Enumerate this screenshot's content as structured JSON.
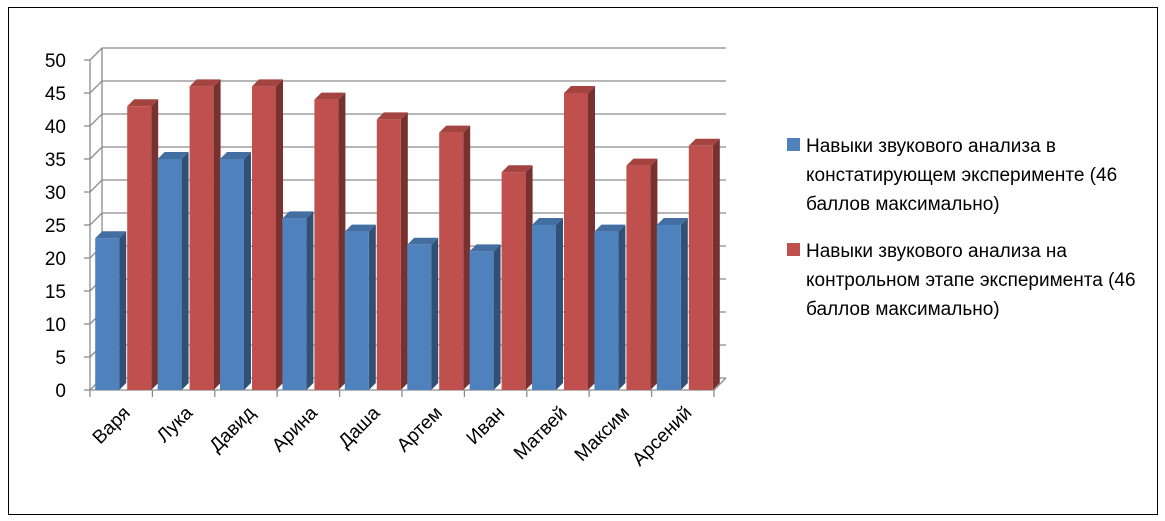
{
  "chart_data": {
    "type": "bar",
    "categories": [
      "Варя",
      "Лука",
      "Давид",
      "Арина",
      "Даша",
      "Артем",
      "Иван",
      "Матвей",
      "Максим",
      "Арсений"
    ],
    "series": [
      {
        "name": "Навыки звукового анализа  в констатирующем эксперименте (46 баллов максимально)",
        "values": [
          23,
          35,
          35,
          26,
          24,
          22,
          21,
          25,
          24,
          25
        ],
        "color": "#4F81BD"
      },
      {
        "name": "Навыки звукового анализа  на контрольном этапе эксперимента (46 баллов максимально)",
        "values": [
          43,
          46,
          46,
          44,
          41,
          39,
          33,
          45,
          34,
          37
        ],
        "color": "#C0504D"
      }
    ],
    "ylim": [
      0,
      50
    ],
    "yticks": [
      "0",
      "5",
      "10",
      "15",
      "20",
      "25",
      "30",
      "35",
      "40",
      "45",
      "50"
    ],
    "grid": true,
    "legend_position": "right",
    "style": "3d-clustered-column"
  }
}
